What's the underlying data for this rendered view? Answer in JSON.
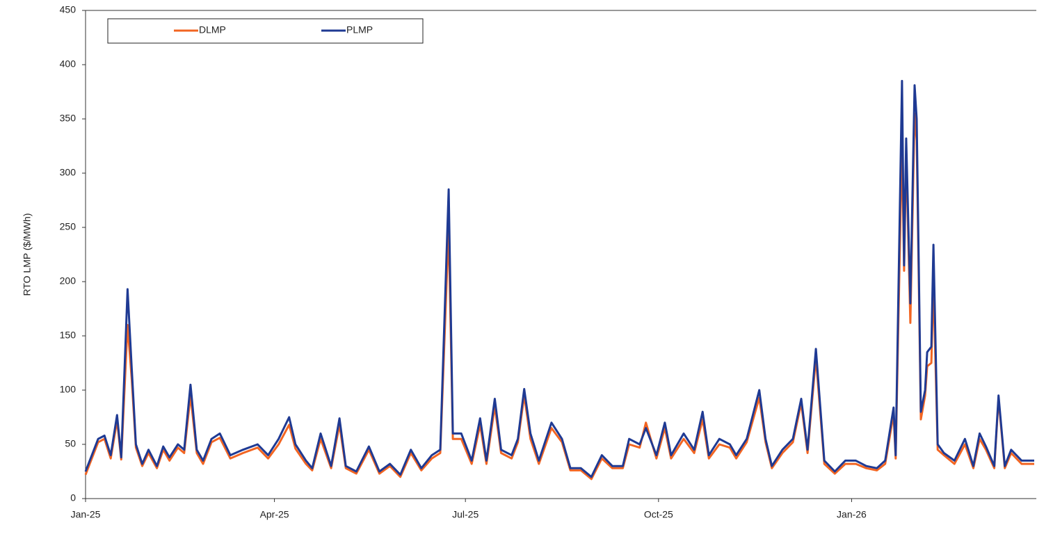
{
  "chart_data": {
    "type": "line",
    "y_label": "RTO LMP ($/MWh)",
    "x": [
      0,
      6,
      9,
      12,
      15,
      17,
      20,
      22,
      24,
      27,
      30,
      34,
      37,
      40,
      44,
      47,
      50,
      53,
      56,
      60,
      64,
      69,
      75,
      82,
      87,
      92,
      97,
      100,
      105,
      108,
      112,
      117,
      121,
      124,
      129,
      135,
      140,
      145,
      150,
      155,
      160,
      165,
      169,
      173,
      175,
      179,
      184,
      188,
      191,
      195,
      198,
      203,
      206,
      209,
      212,
      216,
      222,
      227,
      231,
      236,
      241,
      246,
      251,
      256,
      259,
      264,
      267,
      272,
      276,
      279,
      285,
      290,
      294,
      297,
      302,
      307,
      310,
      315,
      321,
      324,
      327,
      332,
      337,
      341,
      344,
      348,
      352,
      357,
      362,
      367,
      372,
      377,
      381,
      385,
      386,
      389,
      390,
      391,
      393,
      395,
      396,
      398,
      400,
      401,
      403,
      404,
      406,
      409,
      414,
      419,
      423,
      426,
      429,
      433,
      435,
      438,
      441,
      446,
      452
    ],
    "series": [
      {
        "name": "DLMP",
        "color": "#f26522",
        "values": [
          22,
          52,
          55,
          37,
          72,
          36,
          160,
          110,
          47,
          30,
          42,
          28,
          45,
          35,
          47,
          42,
          95,
          42,
          32,
          52,
          56,
          37,
          42,
          47,
          37,
          50,
          68,
          46,
          32,
          26,
          55,
          28,
          68,
          28,
          23,
          45,
          23,
          30,
          20,
          42,
          26,
          37,
          42,
          250,
          55,
          55,
          32,
          68,
          32,
          85,
          42,
          37,
          52,
          95,
          55,
          32,
          65,
          52,
          26,
          26,
          18,
          37,
          28,
          28,
          50,
          47,
          70,
          37,
          65,
          37,
          55,
          42,
          73,
          37,
          50,
          47,
          37,
          52,
          93,
          52,
          28,
          42,
          52,
          88,
          42,
          130,
          32,
          23,
          32,
          32,
          28,
          26,
          32,
          78,
          37,
          330,
          210,
          320,
          162,
          355,
          330,
          73,
          95,
          122,
          125,
          200,
          45,
          40,
          32,
          50,
          28,
          55,
          45,
          28,
          92,
          28,
          42,
          32,
          32
        ]
      },
      {
        "name": "PLMP",
        "color": "#1f3a93",
        "values": [
          25,
          55,
          58,
          40,
          77,
          38,
          193,
          120,
          50,
          32,
          45,
          30,
          48,
          38,
          50,
          45,
          105,
          45,
          35,
          55,
          60,
          40,
          45,
          50,
          40,
          55,
          75,
          50,
          35,
          28,
          60,
          30,
          74,
          30,
          25,
          48,
          25,
          32,
          22,
          45,
          28,
          40,
          45,
          285,
          60,
          60,
          35,
          74,
          35,
          92,
          45,
          40,
          55,
          101,
          60,
          35,
          70,
          55,
          28,
          28,
          20,
          40,
          30,
          30,
          55,
          50,
          65,
          40,
          70,
          40,
          60,
          45,
          80,
          40,
          55,
          50,
          40,
          55,
          100,
          55,
          30,
          45,
          55,
          92,
          45,
          138,
          35,
          25,
          35,
          35,
          30,
          28,
          35,
          84,
          40,
          385,
          215,
          332,
          180,
          381,
          350,
          80,
          100,
          135,
          140,
          234,
          50,
          42,
          35,
          55,
          30,
          60,
          48,
          30,
          95,
          30,
          45,
          35,
          35
        ]
      }
    ],
    "xlim": [
      0,
      453
    ],
    "xticks": [
      {
        "value": 0,
        "label": "Jan-25"
      },
      {
        "value": 90,
        "label": "Apr-25"
      },
      {
        "value": 181,
        "label": "Jul-25"
      },
      {
        "value": 273,
        "label": "Oct-25"
      },
      {
        "value": 365,
        "label": "Jan-26"
      }
    ],
    "ylim": [
      0,
      450
    ],
    "yticks": [
      0,
      50,
      100,
      150,
      200,
      250,
      300,
      350,
      400,
      450
    ],
    "legend": "top-left"
  }
}
